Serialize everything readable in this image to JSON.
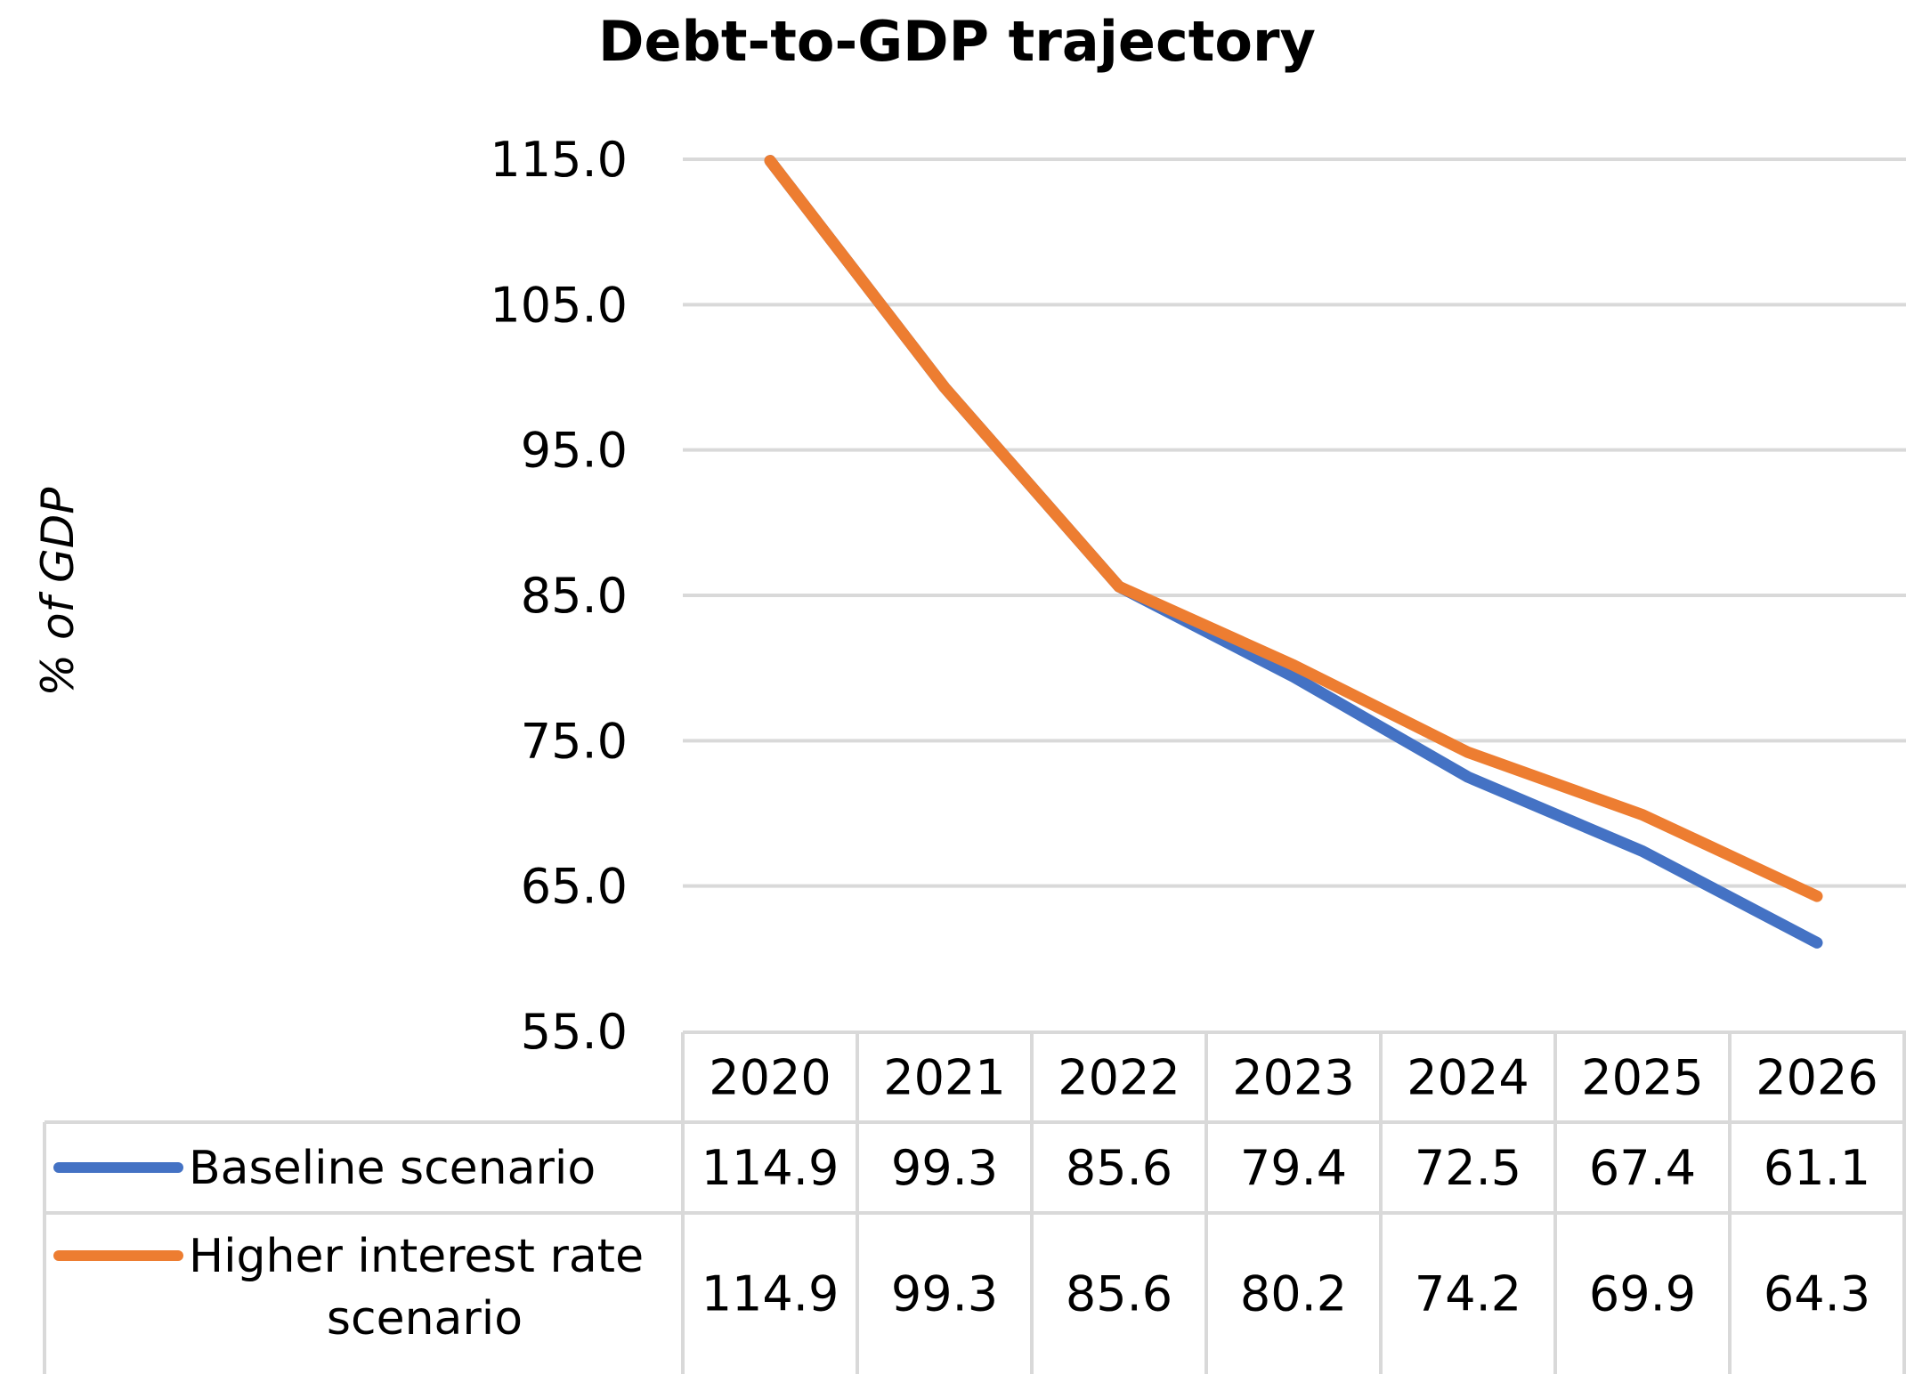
{
  "chart_data": {
    "type": "line",
    "title": "Debt-to-GDP trajectory",
    "xlabel": "",
    "ylabel": "% of GDP",
    "categories": [
      "2020",
      "2021",
      "2022",
      "2023",
      "2024",
      "2025",
      "2026"
    ],
    "y_ticks": [
      "115.0",
      "105.0",
      "95.0",
      "85.0",
      "75.0",
      "65.0",
      "55.0"
    ],
    "ylim": [
      55,
      115
    ],
    "grid": true,
    "legend": "data table below chart",
    "series": [
      {
        "name": "Baseline scenario",
        "label_lines": [
          "Baseline scenario"
        ],
        "color": "#4472C4",
        "values": [
          114.9,
          99.3,
          85.6,
          79.4,
          72.5,
          67.4,
          61.1
        ],
        "table_values": [
          "114.9",
          "99.3",
          "85.6",
          "79.4",
          "72.5",
          "67.4",
          "61.1"
        ]
      },
      {
        "name": "Higher interest rate scenario",
        "label_lines": [
          "Higher interest rate",
          "scenario"
        ],
        "color": "#ED7D31",
        "values": [
          114.9,
          99.3,
          85.6,
          80.2,
          74.2,
          69.9,
          64.3
        ],
        "table_values": [
          "114.9",
          "99.3",
          "85.6",
          "80.2",
          "74.2",
          "69.9",
          "64.3"
        ]
      }
    ]
  }
}
